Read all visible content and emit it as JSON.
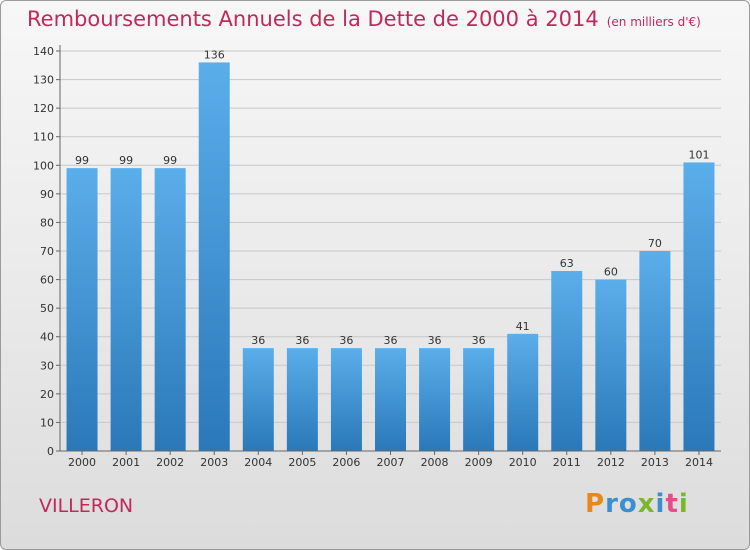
{
  "header": {
    "title": "Remboursements Annuels de la Dette de 2000 à 2014",
    "subtitle": "(en milliers d'€)"
  },
  "commune": "VILLERON",
  "brand": "Proxiti",
  "colors": {
    "title": "#c0295a",
    "bar_top": "#5aaeea",
    "bar_bottom": "#2a78b8"
  },
  "chart_data": {
    "type": "bar",
    "title": "Remboursements Annuels de la Dette de 2000 à 2014",
    "subtitle": "(en milliers d'€)",
    "categories": [
      "2000",
      "2001",
      "2002",
      "2003",
      "2004",
      "2005",
      "2006",
      "2007",
      "2008",
      "2009",
      "2010",
      "2011",
      "2012",
      "2013",
      "2014"
    ],
    "values": [
      99,
      99,
      99,
      136,
      36,
      36,
      36,
      36,
      36,
      36,
      41,
      63,
      60,
      70,
      101
    ],
    "ylim": [
      0,
      140
    ],
    "yticks": [
      0,
      10,
      20,
      30,
      40,
      50,
      60,
      70,
      80,
      90,
      100,
      110,
      120,
      130,
      140
    ],
    "grid": true
  }
}
